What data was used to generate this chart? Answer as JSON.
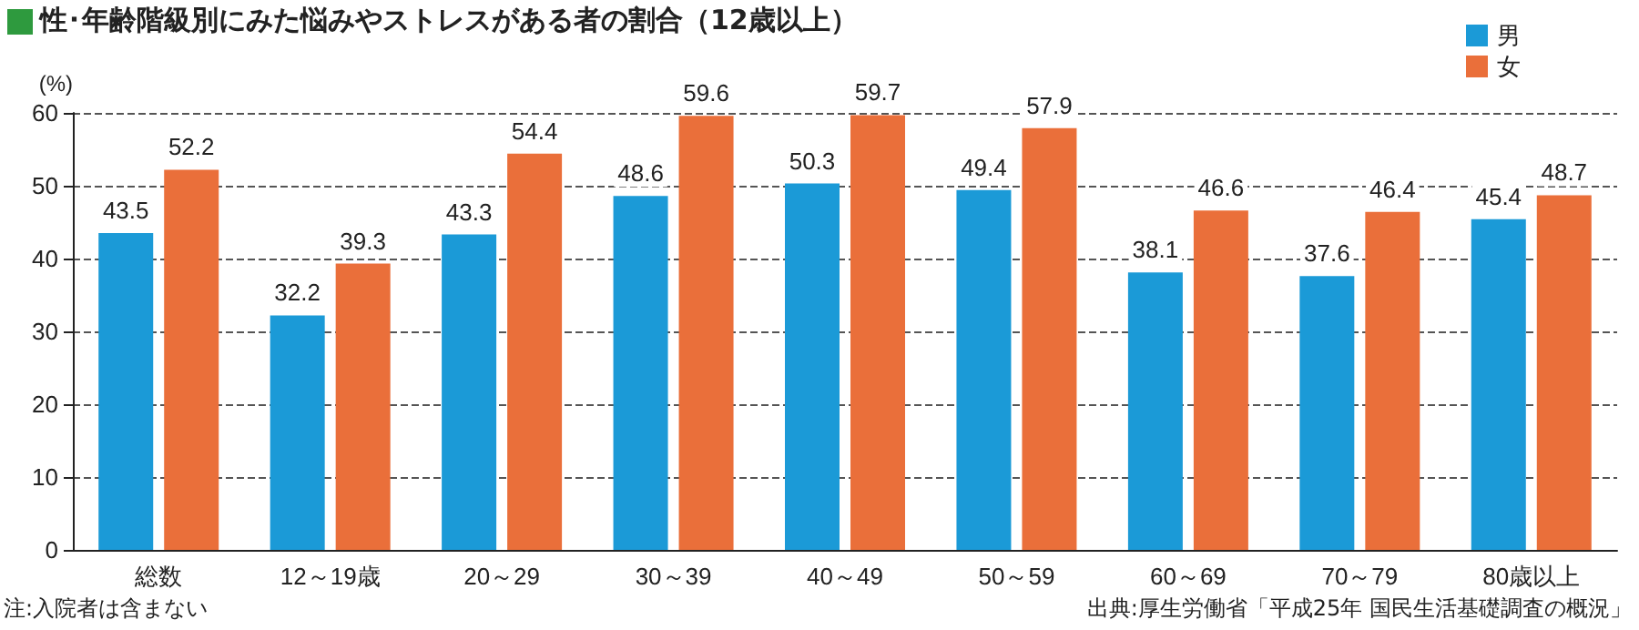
{
  "chart_data": {
    "type": "bar",
    "title": "性･年齢階級別にみた悩みやストレスがある者の割合（12歳以上）",
    "ylabel": "(%)",
    "categories": [
      "総数",
      "12～19歳",
      "20～29",
      "30～39",
      "40～49",
      "50～59",
      "60～69",
      "70～79",
      "80歳以上"
    ],
    "series": [
      {
        "name": "男",
        "color": "#1b9ad7",
        "values": [
          43.5,
          32.2,
          43.3,
          48.6,
          50.3,
          49.4,
          38.1,
          37.6,
          45.4
        ]
      },
      {
        "name": "女",
        "color": "#ea6f3a",
        "values": [
          52.2,
          39.3,
          54.4,
          59.6,
          59.7,
          57.9,
          46.6,
          46.4,
          48.7
        ]
      }
    ],
    "ylim": [
      0,
      60
    ],
    "yticks": [
      0,
      10,
      20,
      30,
      40,
      50,
      60
    ],
    "grid": "y",
    "legend": "top right",
    "data_labels": true,
    "annotations": [
      "注:入院者は含まない",
      "出典:厚生労働省「平成25年 国民生活基礎調査の概況」"
    ]
  }
}
